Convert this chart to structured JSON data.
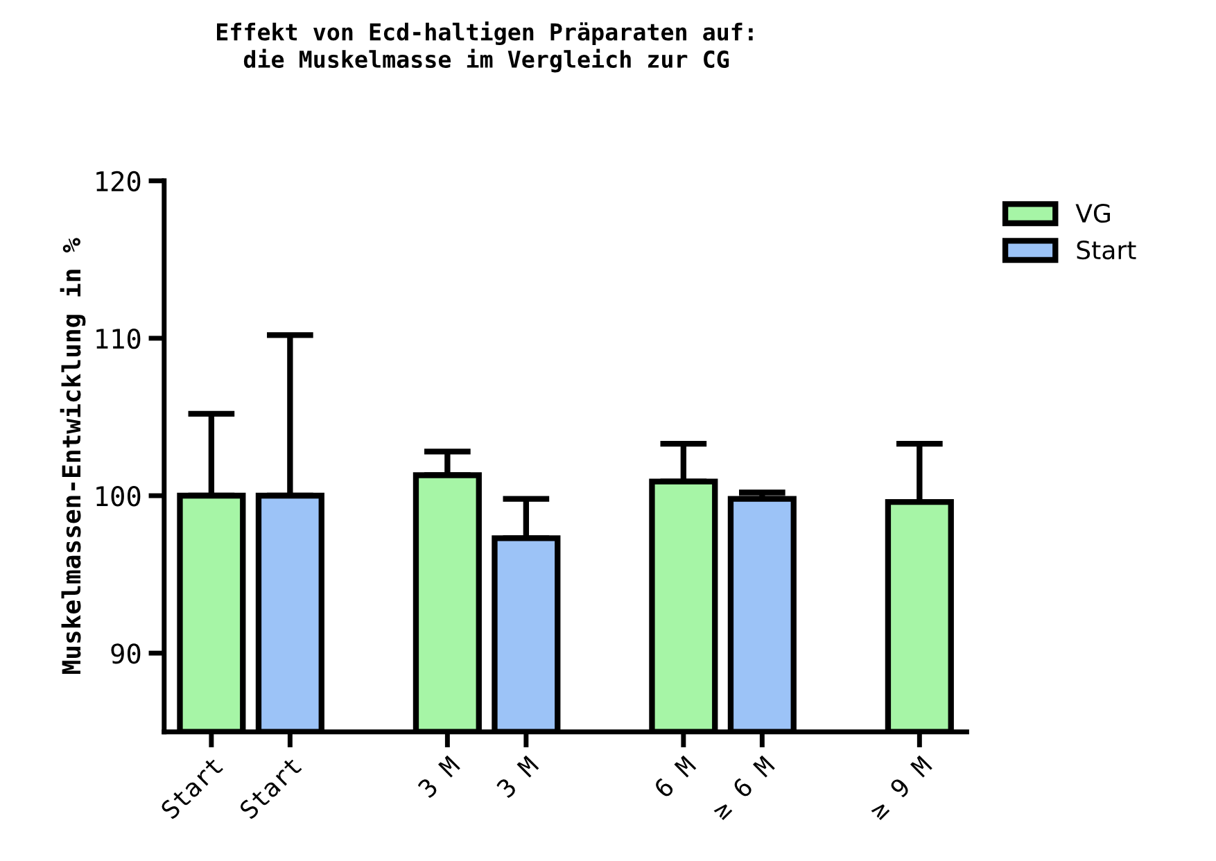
{
  "chart_data": {
    "type": "bar",
    "title": "Effekt von Ecd-haltigen Präparaten auf:\ndie Muskelmasse im Vergleich zur CG",
    "ylabel": "Muskelmassen-Entwicklung in %",
    "categories": [
      "Start",
      "Start",
      null,
      "3 M",
      "3 M",
      null,
      "6 M",
      "≥ 6 M",
      null,
      "≥ 9 M"
    ],
    "series": [
      {
        "name": "VG",
        "color": "#a6f5a6",
        "values": [
          100,
          null,
          null,
          101.3,
          null,
          null,
          100.9,
          null,
          null,
          99.6
        ],
        "errors": [
          [
            100,
            105.2
          ],
          null,
          null,
          [
            101.3,
            102.8
          ],
          null,
          null,
          [
            100.9,
            103.3
          ],
          null,
          null,
          [
            99.6,
            103.3
          ]
        ]
      },
      {
        "name": "Start",
        "color": "#9cc3f7",
        "values": [
          null,
          100,
          null,
          null,
          97.3,
          null,
          null,
          99.8,
          null,
          null
        ],
        "errors": [
          null,
          [
            100,
            110.2
          ],
          null,
          null,
          [
            97.3,
            99.8
          ],
          null,
          null,
          [
            99.8,
            100.2
          ],
          null,
          null
        ]
      }
    ],
    "ylim": [
      85,
      120
    ],
    "yticks": [
      90,
      100,
      110,
      120
    ],
    "grid": false,
    "legend": "top right"
  }
}
